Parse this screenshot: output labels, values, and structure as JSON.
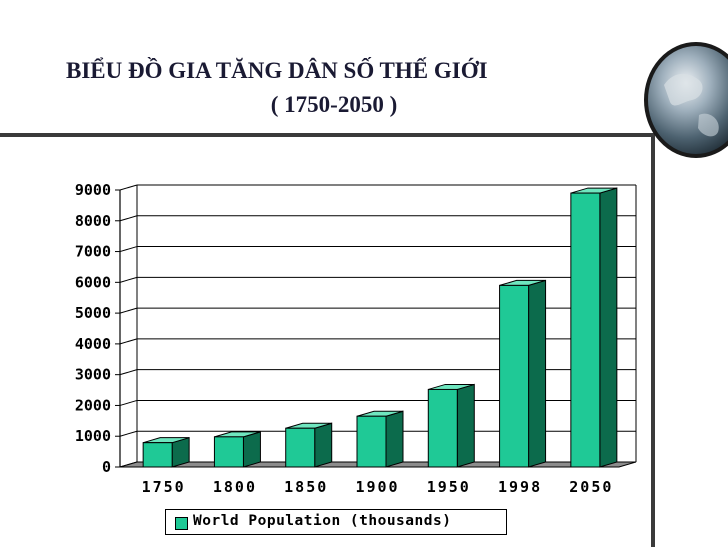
{
  "slide": {
    "title_line1": "BIỂU ĐỒ GIA TĂNG DÂN SỐ THẾ GIỚI",
    "title_line2": "( 1750-2050 )"
  },
  "colors": {
    "bar_front": "#1fc996",
    "bar_side": "#0c6b4c",
    "bar_top": "#6fe6bf",
    "floor": "#8c8c8c",
    "rule": "#3a3a3a"
  },
  "chart_data": {
    "type": "bar",
    "categories": [
      "1750",
      "1800",
      "1850",
      "1900",
      "1950",
      "1998",
      "2050"
    ],
    "series": [
      {
        "name": "World Population (thousands)",
        "values": [
          790,
          980,
          1260,
          1650,
          2520,
          5900,
          8900
        ]
      }
    ],
    "yticks": [
      "0",
      "1000",
      "2000",
      "3000",
      "4000",
      "5000",
      "6000",
      "7000",
      "8000",
      "9000"
    ],
    "ylim": [
      0,
      9000
    ],
    "grid": true,
    "legend_position": "bottom",
    "style": "3d-column"
  }
}
